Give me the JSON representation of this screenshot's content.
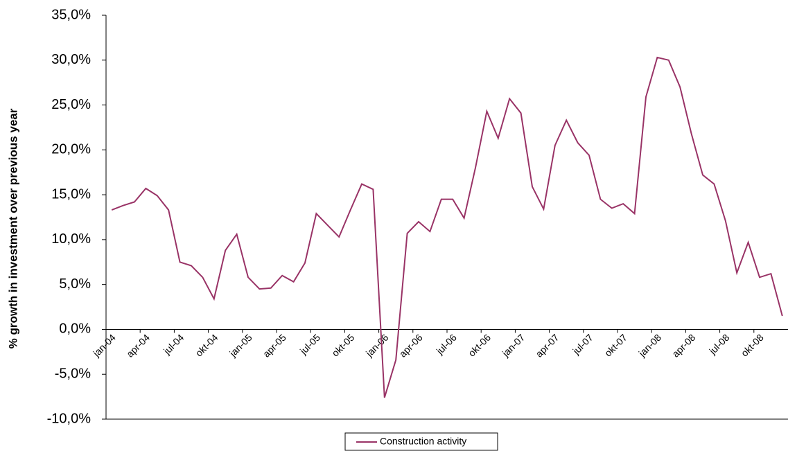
{
  "chart_data": {
    "type": "line",
    "y_label": "% growth in investment over previous year",
    "categories": [
      "jan-04",
      null,
      null,
      "apr-04",
      null,
      null,
      "jul-04",
      null,
      null,
      "okt-04",
      null,
      null,
      "jan-05",
      null,
      null,
      "apr-05",
      null,
      null,
      "jul-05",
      null,
      null,
      "okt-05",
      null,
      null,
      "jan-06",
      null,
      null,
      "apr-06",
      null,
      null,
      "jul-06",
      null,
      null,
      "okt-06",
      null,
      null,
      "jan-07",
      null,
      null,
      "apr-07",
      null,
      null,
      "jul-07",
      null,
      null,
      "okt-07",
      null,
      null,
      "jan-08",
      null,
      null,
      "apr-08",
      null,
      null,
      "jul-08",
      null,
      null,
      "okt-08",
      null,
      null
    ],
    "series": [
      {
        "name": "Construction activity",
        "color": "#993366",
        "values": [
          13.3,
          13.8,
          14.2,
          15.7,
          14.9,
          13.3,
          7.5,
          7.1,
          5.8,
          3.4,
          8.8,
          10.6,
          5.8,
          4.5,
          4.6,
          6.0,
          5.3,
          7.4,
          12.9,
          11.6,
          10.3,
          13.3,
          16.2,
          15.6,
          -7.6,
          -3.4,
          10.7,
          12.0,
          10.9,
          14.5,
          14.5,
          12.4,
          18.0,
          24.3,
          21.3,
          25.7,
          24.1,
          15.9,
          13.4,
          20.5,
          23.3,
          20.8,
          19.4,
          14.5,
          13.5,
          14.0,
          12.9,
          25.9,
          30.3,
          30.0,
          27.0,
          21.8,
          17.2,
          16.2,
          12.1,
          6.3,
          9.7,
          5.8,
          6.2,
          1.5
        ]
      }
    ],
    "ylim": [
      -10,
      35
    ],
    "yticks": [
      {
        "value": -10,
        "label": "-10,0%"
      },
      {
        "value": -5,
        "label": "-5,0%"
      },
      {
        "value": 0,
        "label": "0,0%"
      },
      {
        "value": 5,
        "label": "5,0%"
      },
      {
        "value": 10,
        "label": "10,0%"
      },
      {
        "value": 15,
        "label": "15,0%"
      },
      {
        "value": 20,
        "label": "20,0%"
      },
      {
        "value": 25,
        "label": "25,0%"
      },
      {
        "value": 30,
        "label": "30,0%"
      },
      {
        "value": 35,
        "label": "35,0%"
      }
    ],
    "grid": false,
    "legend": "bottom"
  }
}
